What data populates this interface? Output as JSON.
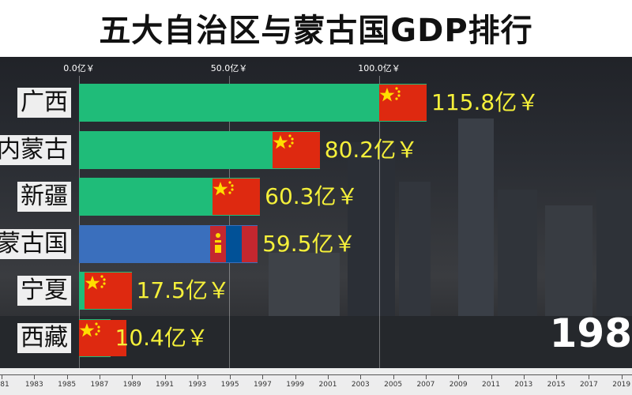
{
  "title": "五大自治区与蒙古国GDP排行",
  "year": "198",
  "colors": {
    "region_bar": "#1fbc79",
    "mongolia_bar": "#3a6fbd",
    "value_text": "#f5f03a",
    "china_flag": "#de2910",
    "china_star": "#ffde00",
    "mongolia_red": "#c4272f",
    "mongolia_blue": "#015197"
  },
  "chart_data": {
    "type": "bar",
    "orientation": "horizontal",
    "title": "五大自治区与蒙古国GDP排行",
    "xlim": [
      0,
      125
    ],
    "x_ticks": [
      {
        "value": 0,
        "label": "0.0亿￥"
      },
      {
        "value": 50,
        "label": "50.0亿￥"
      },
      {
        "value": 100,
        "label": "100.0亿￥"
      }
    ],
    "categories": [
      "广西",
      "内蒙古",
      "新疆",
      "蒙古国",
      "宁夏",
      "西藏"
    ],
    "values": [
      115.8,
      80.2,
      60.3,
      59.5,
      17.5,
      10.4
    ],
    "value_labels": [
      "115.8亿￥",
      "80.2亿￥",
      "60.3亿￥",
      "59.5亿￥",
      "17.5亿￥",
      "10.4亿￥"
    ],
    "flags": [
      "china",
      "china",
      "china",
      "mongolia",
      "china",
      "china"
    ],
    "grid": true
  },
  "timeline": {
    "labels": [
      "81",
      "1983",
      "1985",
      "1987",
      "1989",
      "1991",
      "1993",
      "1995",
      "1997",
      "1999",
      "2001",
      "2003",
      "2005",
      "2007",
      "2009",
      "2011",
      "2013",
      "2015",
      "2017",
      "2019"
    ]
  }
}
